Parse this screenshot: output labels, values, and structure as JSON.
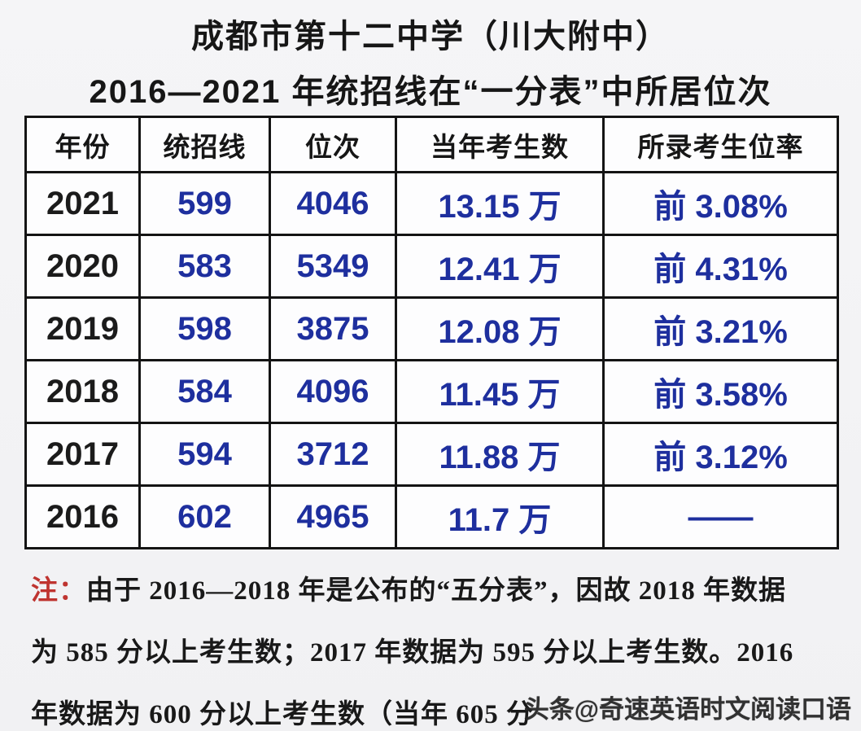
{
  "page": {
    "title_line1": "成都市第十二中学（川大附中）",
    "title_line2": "2016—2021 年统招线在“一分表”中所居位次"
  },
  "table": {
    "headers": [
      "年份",
      "统招线",
      "位次",
      "当年考生数",
      "所录考生位率"
    ],
    "rows": [
      {
        "year": "2021",
        "line": "599",
        "rank": "4046",
        "candidates": "13.15 万",
        "ratio": "前 3.08%"
      },
      {
        "year": "2020",
        "line": "583",
        "rank": "5349",
        "candidates": "12.41 万",
        "ratio": "前 4.31%"
      },
      {
        "year": "2019",
        "line": "598",
        "rank": "3875",
        "candidates": "12.08 万",
        "ratio": "前 3.21%"
      },
      {
        "year": "2018",
        "line": "584",
        "rank": "4096",
        "candidates": "11.45 万",
        "ratio": "前 3.58%"
      },
      {
        "year": "2017",
        "line": "594",
        "rank": "3712",
        "candidates": "11.88 万",
        "ratio": "前 3.12%"
      },
      {
        "year": "2016",
        "line": "602",
        "rank": "4965",
        "candidates": "11.7 万",
        "ratio": "——"
      }
    ]
  },
  "note": {
    "label": "注：",
    "line1": "由于 2016—2018 年是公布的“五分表”，因故 2018 年数据",
    "line2": "为 585 分以上考生数；2017 年数据为 595 分以上考生数。2016",
    "line3": "年数据为 600 分以上考生数（当年 605 分"
  },
  "watermark": "头条@奇速英语时文阅读口语",
  "colors": {
    "data_blue": "#1e2f9e",
    "note_red": "#bf3430",
    "border_black": "#141414"
  }
}
